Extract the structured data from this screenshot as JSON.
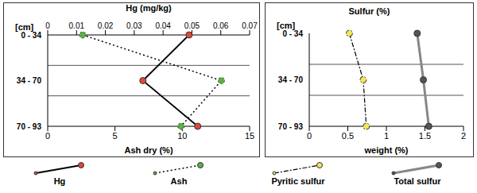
{
  "chart_data": [
    {
      "type": "line",
      "y_label": "[cm]",
      "categories": [
        "0 - 34",
        "34 - 70",
        "70 - 93"
      ],
      "x_label": "Ash dry (%)",
      "xlim": [
        0,
        15
      ],
      "xticks": [
        0,
        5,
        10,
        15
      ],
      "x2_label": "Hg (mg/kg)",
      "x2lim": [
        0,
        0.07
      ],
      "x2ticks": [
        0,
        0.01,
        0.02,
        0.03,
        0.04,
        0.05,
        0.06,
        0.07
      ],
      "grid": true,
      "legend": "bottom",
      "series": [
        {
          "name": "Hg",
          "color": "#e0483a",
          "marker": "circle",
          "line_style": "solid",
          "axis": "x2",
          "values": [
            0.049,
            0.033,
            0.052
          ]
        },
        {
          "name": "Ash",
          "color": "#5bb046",
          "marker": "circle",
          "line_style": "dotted",
          "values": [
            2.6,
            12.9,
            9.9
          ]
        }
      ]
    },
    {
      "type": "line",
      "title": "Sulfur (%)",
      "y_label": "[cm]",
      "categories": [
        "0 - 34",
        "34 - 70",
        "70 - 93"
      ],
      "x_label": "weight (%)",
      "xlim": [
        0,
        2
      ],
      "xticks": [
        0,
        0.5,
        1,
        1.5,
        2
      ],
      "grid": true,
      "legend": "bottom",
      "series": [
        {
          "name": "Pyritic sulfur",
          "color": "#f3e55a",
          "marker": "circle",
          "line_style": "dashdot",
          "values": [
            0.52,
            0.7,
            0.74
          ]
        },
        {
          "name": "Total sulfur",
          "color": "#555555",
          "marker": "circle",
          "line_style": "thick",
          "values": [
            1.4,
            1.48,
            1.55
          ]
        }
      ]
    }
  ]
}
